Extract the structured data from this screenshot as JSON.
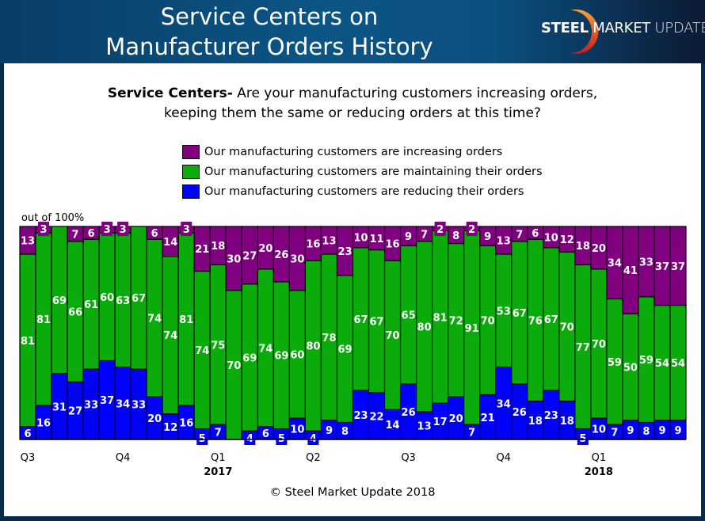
{
  "header": {
    "title_line1": "Service Centers on",
    "title_line2": "Manufacturer Orders History",
    "logo_bold": "STEEL",
    "logo_mid": "MARKET",
    "logo_light": "UPDATE"
  },
  "question": {
    "bold": "Service Centers-",
    "line1": " Are your manufacturing customers increasing orders,",
    "line2": "keeping them the same or reducing orders at this time?"
  },
  "copyright": "© Steel Market Update 2018",
  "chart_data": {
    "type": "bar",
    "stacked": true,
    "ylabel": "out of 100%",
    "ylim": [
      0,
      100
    ],
    "grid": false,
    "legend_position": "top",
    "x_tick_labels": [
      {
        "bar": 0,
        "label": "Q3",
        "year": ""
      },
      {
        "bar": 6,
        "label": "Q4",
        "year": ""
      },
      {
        "bar": 12,
        "label": "Q1",
        "year": "2017"
      },
      {
        "bar": 18,
        "label": "Q2",
        "year": ""
      },
      {
        "bar": 24,
        "label": "Q3",
        "year": ""
      },
      {
        "bar": 30,
        "label": "Q4",
        "year": ""
      },
      {
        "bar": 36,
        "label": "Q1",
        "year": "2018"
      }
    ],
    "series": [
      {
        "name": "Our manufacturing customers are reducing their orders",
        "color": "#0000ff",
        "values": [
          6,
          16,
          31,
          27,
          33,
          37,
          34,
          33,
          20,
          12,
          16,
          5,
          7,
          0,
          4,
          6,
          5,
          10,
          4,
          9,
          8,
          23,
          22,
          14,
          26,
          13,
          17,
          20,
          7,
          21,
          34,
          26,
          18,
          23,
          18,
          5,
          10,
          7,
          9,
          8,
          9,
          9
        ]
      },
      {
        "name": "Our manufacturing customers are maintaining their orders",
        "color": "#0aab0a",
        "values": [
          81,
          81,
          69,
          66,
          61,
          60,
          63,
          67,
          74,
          74,
          81,
          74,
          75,
          70,
          69,
          74,
          69,
          60,
          80,
          78,
          69,
          67,
          67,
          70,
          65,
          80,
          81,
          72,
          91,
          70,
          53,
          67,
          76,
          67,
          70,
          77,
          70,
          59,
          50,
          59,
          54,
          54
        ]
      },
      {
        "name": "Our manufacturing customers are increasing orders",
        "color": "#800080",
        "values": [
          13,
          3,
          0,
          7,
          6,
          3,
          3,
          0,
          6,
          14,
          3,
          21,
          18,
          30,
          27,
          20,
          26,
          30,
          16,
          13,
          23,
          10,
          11,
          16,
          9,
          7,
          2,
          8,
          2,
          9,
          13,
          7,
          6,
          10,
          12,
          18,
          20,
          34,
          41,
          33,
          37,
          37
        ]
      }
    ]
  }
}
